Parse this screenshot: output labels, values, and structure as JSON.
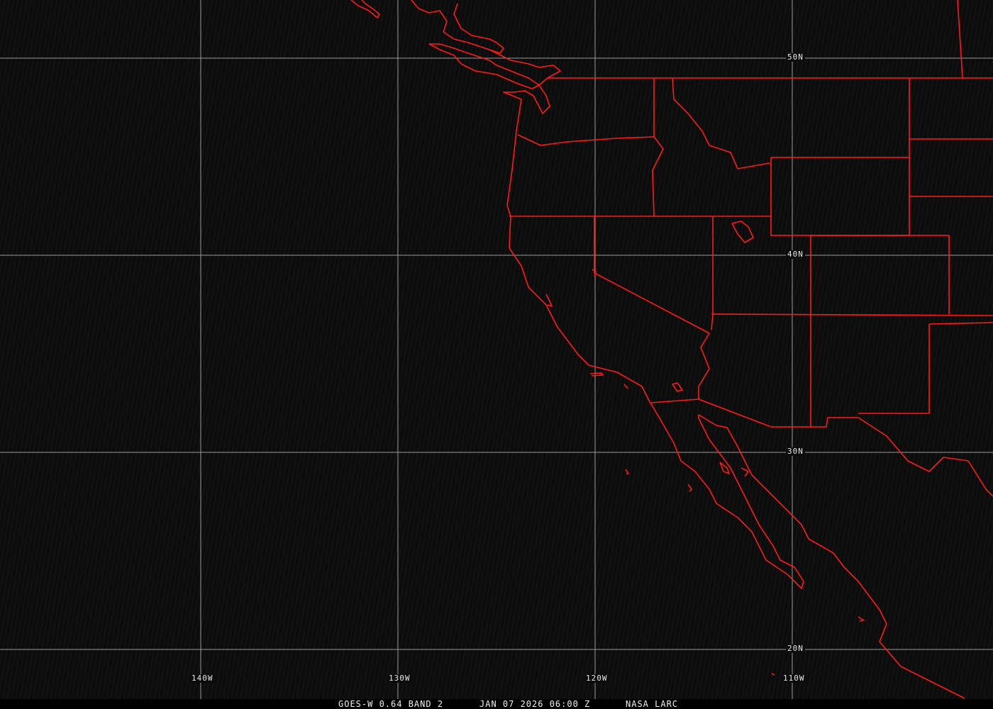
{
  "map": {
    "colors": {
      "background": "#0c0c0c",
      "grid": "#9a9a9a",
      "borders": "#ff1a1a",
      "text": "#e8e8e8"
    },
    "lat_labels": [
      "50N",
      "40N",
      "30N",
      "20N"
    ],
    "lon_labels": [
      "140W",
      "130W",
      "120W",
      "110W"
    ]
  },
  "caption": {
    "product": "GOES-W 0.64 BAND 2",
    "datetime": "JAN 07 2026 06:00 Z",
    "source": "NASA LARC"
  }
}
